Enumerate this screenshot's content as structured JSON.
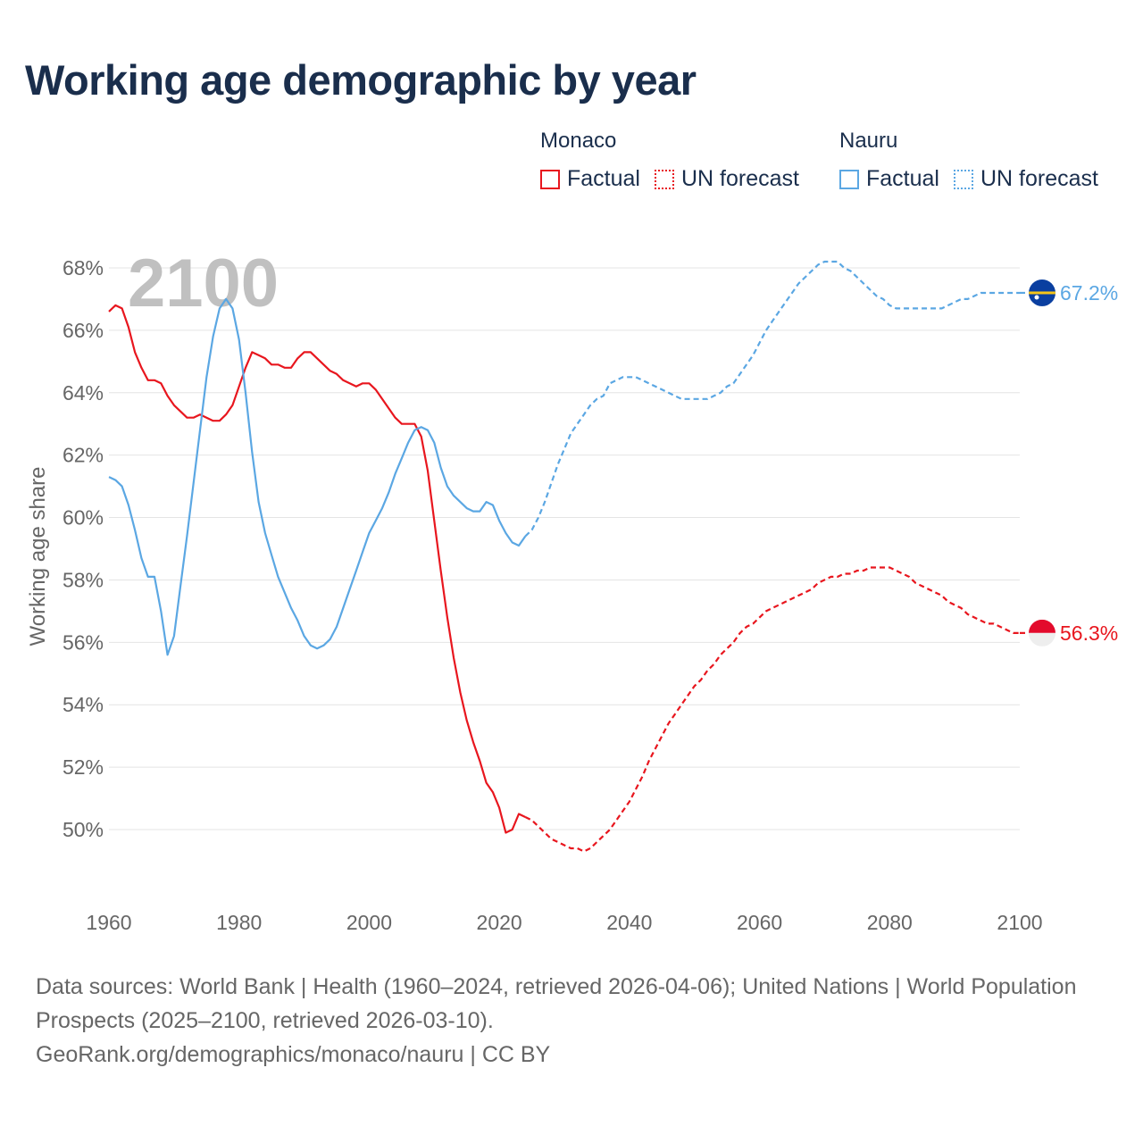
{
  "title": "Working age demographic by year",
  "legend": {
    "groups": [
      {
        "name": "Monaco",
        "color": "#e8161e",
        "items": [
          {
            "label": "Factual",
            "style": "solid"
          },
          {
            "label": "UN forecast",
            "style": "dotted"
          }
        ]
      },
      {
        "name": "Nauru",
        "color": "#5ba7e3",
        "items": [
          {
            "label": "Factual",
            "style": "solid"
          },
          {
            "label": "UN forecast",
            "style": "dotted"
          }
        ]
      }
    ]
  },
  "footer": {
    "sources": "Data sources: World Bank | Health (1960–2024, retrieved 2026-04-06); United Nations | World Population Prospects (2025–2100, retrieved 2026-03-10).",
    "credit": "GeoRank.org/demographics/monaco/nauru | CC BY"
  },
  "chart_data": {
    "type": "line",
    "title": "Working age demographic by year",
    "xlabel": "",
    "ylabel": "Working age share",
    "xlim": [
      1960,
      2100
    ],
    "ylim": [
      48,
      68.5
    ],
    "x_ticks": [
      1960,
      1980,
      2000,
      2020,
      2040,
      2060,
      2080,
      2100
    ],
    "x_tick_labels": [
      "1960",
      "1980",
      "2000",
      "2020",
      "2040",
      "2060",
      "2080",
      "2100"
    ],
    "y_ticks": [
      50,
      52,
      54,
      56,
      58,
      60,
      62,
      64,
      66,
      68
    ],
    "y_tick_labels": [
      "50%",
      "52%",
      "54%",
      "56%",
      "58%",
      "60%",
      "62%",
      "64%",
      "66%",
      "68%"
    ],
    "grid": true,
    "year_watermark": "2100",
    "forecast_start": 2024,
    "series": [
      {
        "name": "Monaco",
        "color": "#e8161e",
        "end_label": "56.3%",
        "flag": "monaco",
        "points": [
          [
            1960,
            66.6
          ],
          [
            1961,
            66.8
          ],
          [
            1962,
            66.7
          ],
          [
            1963,
            66.1
          ],
          [
            1964,
            65.3
          ],
          [
            1965,
            64.8
          ],
          [
            1966,
            64.4
          ],
          [
            1967,
            64.4
          ],
          [
            1968,
            64.3
          ],
          [
            1969,
            63.9
          ],
          [
            1970,
            63.6
          ],
          [
            1971,
            63.4
          ],
          [
            1972,
            63.2
          ],
          [
            1973,
            63.2
          ],
          [
            1974,
            63.3
          ],
          [
            1975,
            63.2
          ],
          [
            1976,
            63.1
          ],
          [
            1977,
            63.1
          ],
          [
            1978,
            63.3
          ],
          [
            1979,
            63.6
          ],
          [
            1980,
            64.2
          ],
          [
            1981,
            64.8
          ],
          [
            1982,
            65.3
          ],
          [
            1983,
            65.2
          ],
          [
            1984,
            65.1
          ],
          [
            1985,
            64.9
          ],
          [
            1986,
            64.9
          ],
          [
            1987,
            64.8
          ],
          [
            1988,
            64.8
          ],
          [
            1989,
            65.1
          ],
          [
            1990,
            65.3
          ],
          [
            1991,
            65.3
          ],
          [
            1992,
            65.1
          ],
          [
            1993,
            64.9
          ],
          [
            1994,
            64.7
          ],
          [
            1995,
            64.6
          ],
          [
            1996,
            64.4
          ],
          [
            1997,
            64.3
          ],
          [
            1998,
            64.2
          ],
          [
            1999,
            64.3
          ],
          [
            2000,
            64.3
          ],
          [
            2001,
            64.1
          ],
          [
            2002,
            63.8
          ],
          [
            2003,
            63.5
          ],
          [
            2004,
            63.2
          ],
          [
            2005,
            63.0
          ],
          [
            2006,
            63.0
          ],
          [
            2007,
            63.0
          ],
          [
            2008,
            62.6
          ],
          [
            2009,
            61.5
          ],
          [
            2010,
            59.9
          ],
          [
            2011,
            58.3
          ],
          [
            2012,
            56.8
          ],
          [
            2013,
            55.5
          ],
          [
            2014,
            54.4
          ],
          [
            2015,
            53.5
          ],
          [
            2016,
            52.8
          ],
          [
            2017,
            52.2
          ],
          [
            2018,
            51.5
          ],
          [
            2019,
            51.2
          ],
          [
            2020,
            50.7
          ],
          [
            2021,
            49.9
          ],
          [
            2022,
            50.0
          ],
          [
            2023,
            50.5
          ],
          [
            2024,
            50.4
          ],
          [
            2025,
            50.3
          ],
          [
            2026,
            50.1
          ],
          [
            2027,
            49.9
          ],
          [
            2028,
            49.7
          ],
          [
            2029,
            49.6
          ],
          [
            2030,
            49.5
          ],
          [
            2031,
            49.4
          ],
          [
            2032,
            49.4
          ],
          [
            2033,
            49.3
          ],
          [
            2034,
            49.4
          ],
          [
            2035,
            49.6
          ],
          [
            2036,
            49.8
          ],
          [
            2037,
            50.0
          ],
          [
            2038,
            50.3
          ],
          [
            2039,
            50.6
          ],
          [
            2040,
            50.9
          ],
          [
            2041,
            51.3
          ],
          [
            2042,
            51.7
          ],
          [
            2043,
            52.2
          ],
          [
            2044,
            52.6
          ],
          [
            2045,
            53.0
          ],
          [
            2046,
            53.4
          ],
          [
            2047,
            53.7
          ],
          [
            2048,
            54.0
          ],
          [
            2049,
            54.3
          ],
          [
            2050,
            54.6
          ],
          [
            2051,
            54.8
          ],
          [
            2052,
            55.1
          ],
          [
            2053,
            55.3
          ],
          [
            2054,
            55.6
          ],
          [
            2055,
            55.8
          ],
          [
            2056,
            56.0
          ],
          [
            2057,
            56.3
          ],
          [
            2058,
            56.5
          ],
          [
            2059,
            56.6
          ],
          [
            2060,
            56.8
          ],
          [
            2061,
            57.0
          ],
          [
            2062,
            57.1
          ],
          [
            2063,
            57.2
          ],
          [
            2064,
            57.3
          ],
          [
            2065,
            57.4
          ],
          [
            2066,
            57.5
          ],
          [
            2067,
            57.6
          ],
          [
            2068,
            57.7
          ],
          [
            2069,
            57.9
          ],
          [
            2070,
            58.0
          ],
          [
            2071,
            58.1
          ],
          [
            2072,
            58.1
          ],
          [
            2073,
            58.2
          ],
          [
            2074,
            58.2
          ],
          [
            2075,
            58.3
          ],
          [
            2076,
            58.3
          ],
          [
            2077,
            58.4
          ],
          [
            2078,
            58.4
          ],
          [
            2079,
            58.4
          ],
          [
            2080,
            58.4
          ],
          [
            2081,
            58.3
          ],
          [
            2082,
            58.2
          ],
          [
            2083,
            58.1
          ],
          [
            2084,
            57.9
          ],
          [
            2085,
            57.8
          ],
          [
            2086,
            57.7
          ],
          [
            2087,
            57.6
          ],
          [
            2088,
            57.5
          ],
          [
            2089,
            57.3
          ],
          [
            2090,
            57.2
          ],
          [
            2091,
            57.1
          ],
          [
            2092,
            56.9
          ],
          [
            2093,
            56.8
          ],
          [
            2094,
            56.7
          ],
          [
            2095,
            56.6
          ],
          [
            2096,
            56.6
          ],
          [
            2097,
            56.5
          ],
          [
            2098,
            56.4
          ],
          [
            2099,
            56.3
          ],
          [
            2100,
            56.3
          ]
        ]
      },
      {
        "name": "Nauru",
        "color": "#5ba7e3",
        "end_label": "67.2%",
        "flag": "nauru",
        "points": [
          [
            1960,
            61.3
          ],
          [
            1961,
            61.2
          ],
          [
            1962,
            61.0
          ],
          [
            1963,
            60.4
          ],
          [
            1964,
            59.6
          ],
          [
            1965,
            58.7
          ],
          [
            1966,
            58.1
          ],
          [
            1967,
            58.1
          ],
          [
            1968,
            57.0
          ],
          [
            1969,
            55.6
          ],
          [
            1970,
            56.2
          ],
          [
            1971,
            57.8
          ],
          [
            1972,
            59.4
          ],
          [
            1973,
            61.1
          ],
          [
            1974,
            62.8
          ],
          [
            1975,
            64.5
          ],
          [
            1976,
            65.8
          ],
          [
            1977,
            66.7
          ],
          [
            1978,
            67.0
          ],
          [
            1979,
            66.7
          ],
          [
            1980,
            65.7
          ],
          [
            1981,
            64.0
          ],
          [
            1982,
            62.1
          ],
          [
            1983,
            60.5
          ],
          [
            1984,
            59.5
          ],
          [
            1985,
            58.8
          ],
          [
            1986,
            58.1
          ],
          [
            1987,
            57.6
          ],
          [
            1988,
            57.1
          ],
          [
            1989,
            56.7
          ],
          [
            1990,
            56.2
          ],
          [
            1991,
            55.9
          ],
          [
            1992,
            55.8
          ],
          [
            1993,
            55.9
          ],
          [
            1994,
            56.1
          ],
          [
            1995,
            56.5
          ],
          [
            1996,
            57.1
          ],
          [
            1997,
            57.7
          ],
          [
            1998,
            58.3
          ],
          [
            1999,
            58.9
          ],
          [
            2000,
            59.5
          ],
          [
            2001,
            59.9
          ],
          [
            2002,
            60.3
          ],
          [
            2003,
            60.8
          ],
          [
            2004,
            61.4
          ],
          [
            2005,
            61.9
          ],
          [
            2006,
            62.4
          ],
          [
            2007,
            62.8
          ],
          [
            2008,
            62.9
          ],
          [
            2009,
            62.8
          ],
          [
            2010,
            62.4
          ],
          [
            2011,
            61.6
          ],
          [
            2012,
            61.0
          ],
          [
            2013,
            60.7
          ],
          [
            2014,
            60.5
          ],
          [
            2015,
            60.3
          ],
          [
            2016,
            60.2
          ],
          [
            2017,
            60.2
          ],
          [
            2018,
            60.5
          ],
          [
            2019,
            60.4
          ],
          [
            2020,
            59.9
          ],
          [
            2021,
            59.5
          ],
          [
            2022,
            59.2
          ],
          [
            2023,
            59.1
          ],
          [
            2024,
            59.4
          ],
          [
            2025,
            59.6
          ],
          [
            2026,
            60.0
          ],
          [
            2027,
            60.5
          ],
          [
            2028,
            61.1
          ],
          [
            2029,
            61.7
          ],
          [
            2030,
            62.2
          ],
          [
            2031,
            62.7
          ],
          [
            2032,
            63.0
          ],
          [
            2033,
            63.3
          ],
          [
            2034,
            63.6
          ],
          [
            2035,
            63.8
          ],
          [
            2036,
            63.9
          ],
          [
            2037,
            64.3
          ],
          [
            2038,
            64.4
          ],
          [
            2039,
            64.5
          ],
          [
            2040,
            64.5
          ],
          [
            2041,
            64.5
          ],
          [
            2042,
            64.4
          ],
          [
            2043,
            64.3
          ],
          [
            2044,
            64.2
          ],
          [
            2045,
            64.1
          ],
          [
            2046,
            64.0
          ],
          [
            2047,
            63.9
          ],
          [
            2048,
            63.8
          ],
          [
            2049,
            63.8
          ],
          [
            2050,
            63.8
          ],
          [
            2051,
            63.8
          ],
          [
            2052,
            63.8
          ],
          [
            2053,
            63.9
          ],
          [
            2054,
            64.0
          ],
          [
            2055,
            64.2
          ],
          [
            2056,
            64.3
          ],
          [
            2057,
            64.6
          ],
          [
            2058,
            64.9
          ],
          [
            2059,
            65.2
          ],
          [
            2060,
            65.6
          ],
          [
            2061,
            66.0
          ],
          [
            2062,
            66.3
          ],
          [
            2063,
            66.6
          ],
          [
            2064,
            66.9
          ],
          [
            2065,
            67.2
          ],
          [
            2066,
            67.5
          ],
          [
            2067,
            67.7
          ],
          [
            2068,
            67.9
          ],
          [
            2069,
            68.1
          ],
          [
            2070,
            68.2
          ],
          [
            2071,
            68.2
          ],
          [
            2072,
            68.2
          ],
          [
            2073,
            68.0
          ],
          [
            2074,
            67.9
          ],
          [
            2075,
            67.7
          ],
          [
            2076,
            67.5
          ],
          [
            2077,
            67.3
          ],
          [
            2078,
            67.1
          ],
          [
            2079,
            67.0
          ],
          [
            2080,
            66.8
          ],
          [
            2081,
            66.7
          ],
          [
            2082,
            66.7
          ],
          [
            2083,
            66.7
          ],
          [
            2084,
            66.7
          ],
          [
            2085,
            66.7
          ],
          [
            2086,
            66.7
          ],
          [
            2087,
            66.7
          ],
          [
            2088,
            66.7
          ],
          [
            2089,
            66.8
          ],
          [
            2090,
            66.9
          ],
          [
            2091,
            67.0
          ],
          [
            2092,
            67.0
          ],
          [
            2093,
            67.1
          ],
          [
            2094,
            67.2
          ],
          [
            2095,
            67.2
          ],
          [
            2096,
            67.2
          ],
          [
            2097,
            67.2
          ],
          [
            2098,
            67.2
          ],
          [
            2099,
            67.2
          ],
          [
            2100,
            67.2
          ]
        ]
      }
    ]
  }
}
